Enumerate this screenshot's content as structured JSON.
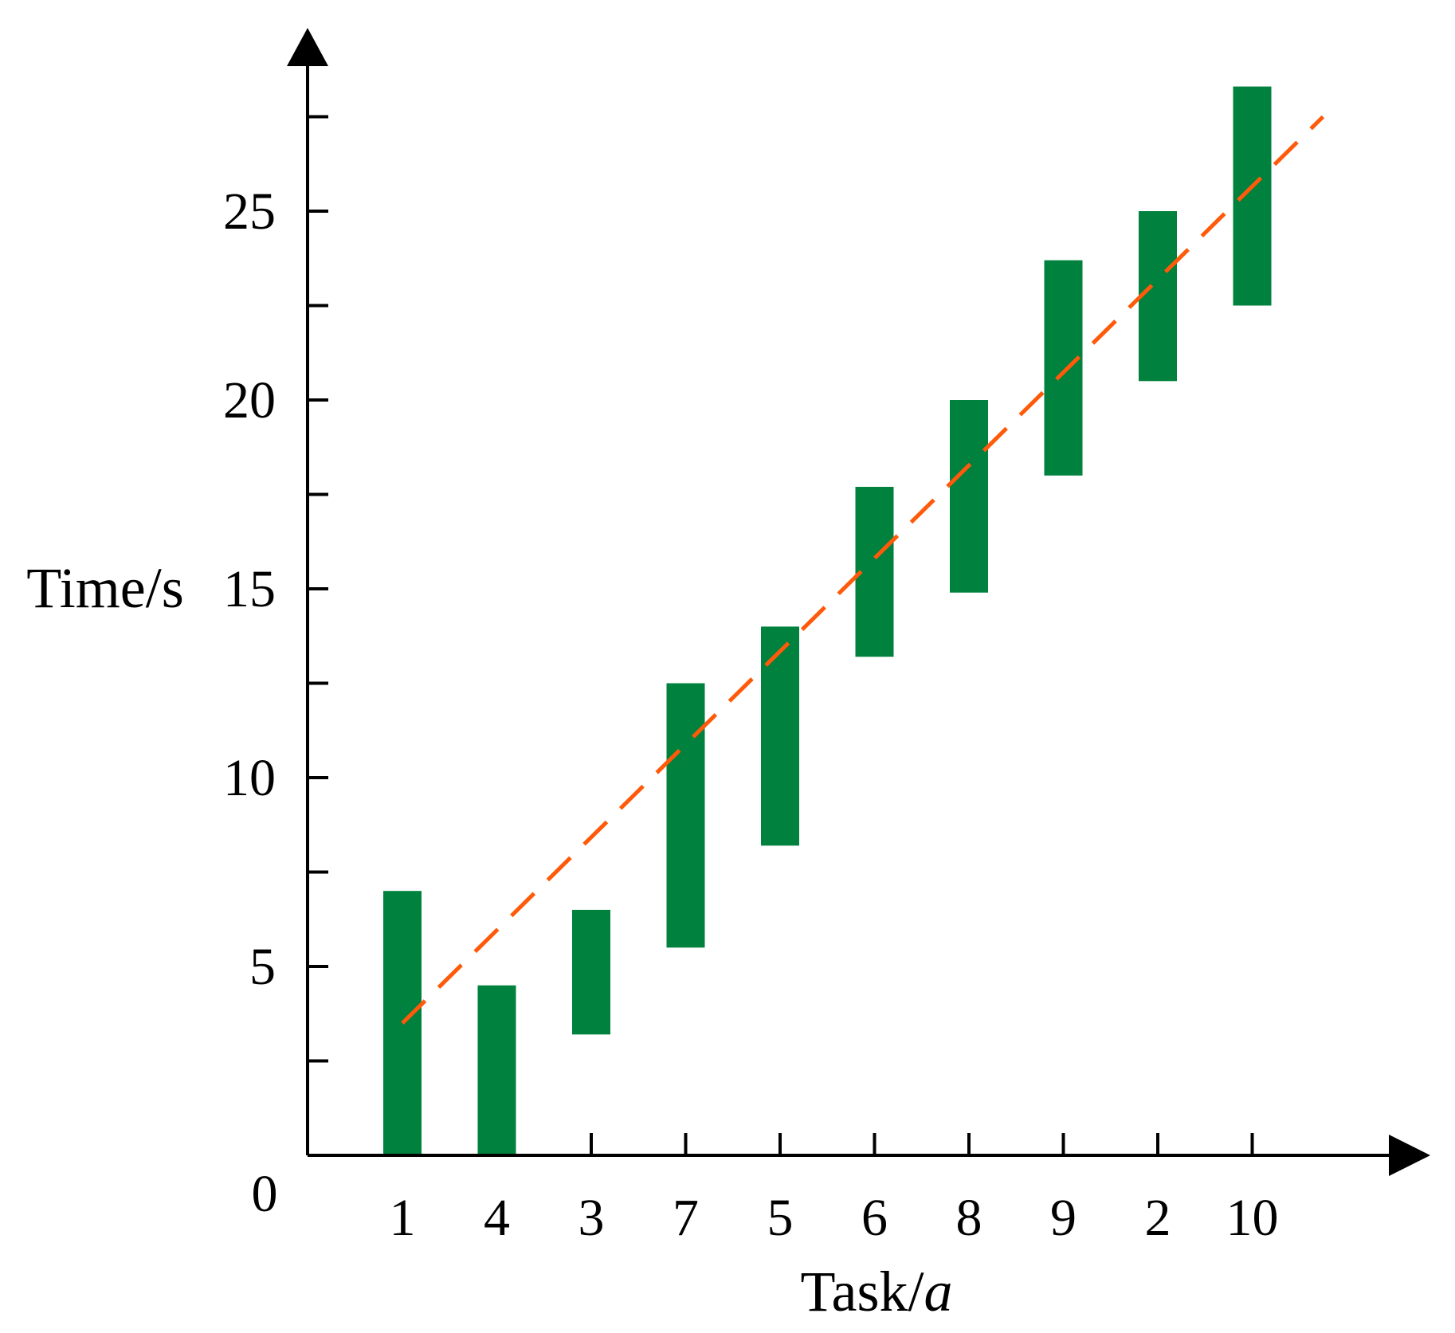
{
  "chart_data": {
    "type": "bar",
    "subtype": "floating-range",
    "title": "",
    "xlabel": {
      "main": "Task/",
      "italic": "a"
    },
    "ylabel": "Time/s",
    "origin_label": "0",
    "categories": [
      "1",
      "4",
      "3",
      "7",
      "5",
      "6",
      "8",
      "9",
      "2",
      "10"
    ],
    "series": [
      {
        "low": [
          0,
          0,
          3.2,
          5.5,
          8.2,
          13.2,
          14.9,
          18.0,
          20.5,
          22.5
        ],
        "high": [
          7.0,
          4.5,
          6.5,
          12.5,
          14.0,
          17.7,
          20.0,
          23.7,
          25.0,
          28.3
        ]
      }
    ],
    "trend_line": {
      "style": "dashed",
      "start": [
        0,
        3.5
      ],
      "end": [
        9.75,
        27.5
      ]
    },
    "ylim": [
      0,
      29
    ],
    "yticks_major": [
      5,
      10,
      15,
      20,
      25
    ],
    "yticks_labels": [
      "5",
      "10",
      "15",
      "20",
      "25"
    ],
    "yticks_minor": [
      2.5,
      7.5,
      12.5,
      17.5,
      22.5,
      27.5
    ],
    "grid": false,
    "legend": "none",
    "colors": {
      "bar": "#00813d",
      "trend": "#ff5a0a",
      "axis": "#000000"
    }
  }
}
